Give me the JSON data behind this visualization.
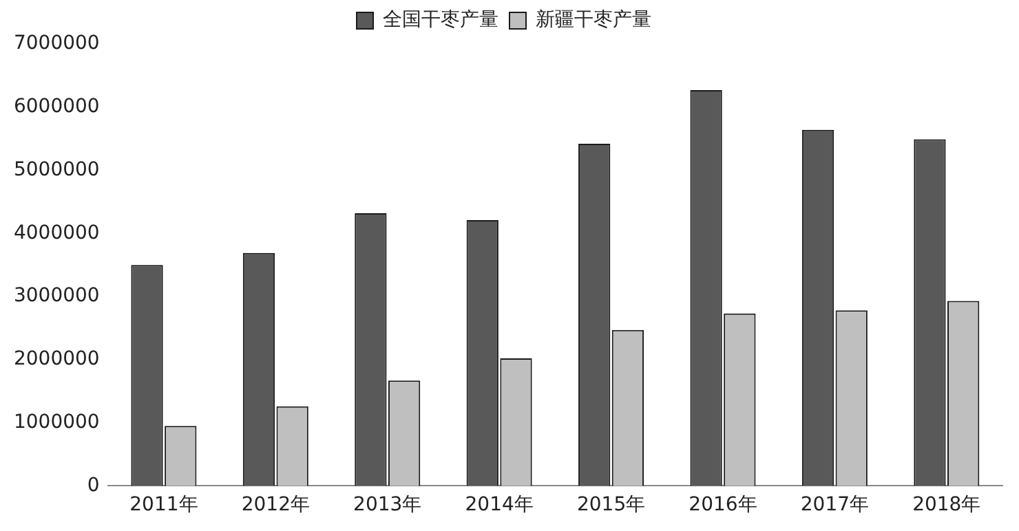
{
  "chart_data": {
    "type": "bar",
    "categories": [
      "2011年",
      "2012年",
      "2013年",
      "2014年",
      "2015年",
      "2016年",
      "2017年",
      "2018年"
    ],
    "series": [
      {
        "name": "全国干枣产量",
        "color": "#595959",
        "values": [
          3500000,
          3690000,
          4320000,
          4210000,
          5420000,
          6270000,
          5640000,
          5490000
        ]
      },
      {
        "name": "新疆干枣产量",
        "color": "#bfbfbf",
        "values": [
          950000,
          1260000,
          1670000,
          2020000,
          2470000,
          2730000,
          2780000,
          2930000
        ]
      }
    ],
    "ylim": [
      0,
      7000000
    ],
    "yticks": [
      0,
      1000000,
      2000000,
      3000000,
      4000000,
      5000000,
      6000000,
      7000000
    ],
    "grid": false,
    "legend": "top"
  }
}
